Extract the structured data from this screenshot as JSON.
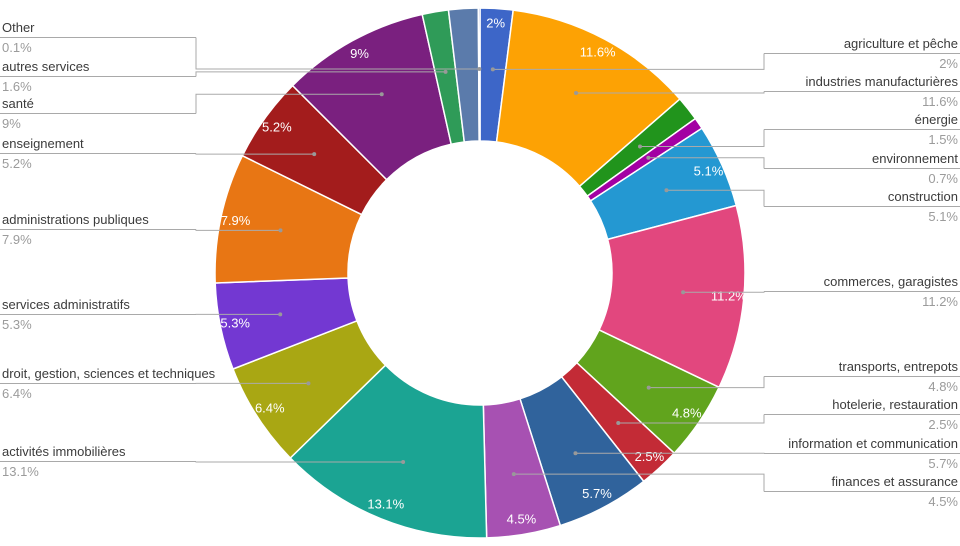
{
  "chart_data": {
    "type": "pie",
    "subtype": "donut",
    "title": "",
    "direction": "clockwise",
    "start_angle_deg": 0,
    "inner_radius_ratio": 0.5,
    "grid": false,
    "legend_position": "callout-labels-left-and-right",
    "slice_pct_label_min_value": 2,
    "colors": {
      "background": "#ffffff",
      "slice_border": "#ffffff",
      "label_name_text": "#3b3b3b",
      "label_value_text": "#9b9b9b",
      "leader_line": "#aaaaaa",
      "leader_dot": "#999999",
      "slice_pct_text": "#ffffff"
    },
    "slices": [
      {
        "name": "agriculture et pêche",
        "value": 2,
        "pct": "2%",
        "color": "#3d66c8",
        "label_side": "right"
      },
      {
        "name": "industries manufacturières",
        "value": 11.6,
        "pct": "11.6%",
        "color": "#fda204",
        "label_side": "right"
      },
      {
        "name": "énergie",
        "value": 1.5,
        "pct": "1.5%",
        "color": "#21941c",
        "label_side": "right"
      },
      {
        "name": "environnement",
        "value": 0.7,
        "pct": "0.7%",
        "color": "#a300a3",
        "label_side": "right"
      },
      {
        "name": "construction",
        "value": 5.1,
        "pct": "5.1%",
        "color": "#2498d2",
        "label_side": "right"
      },
      {
        "name": "commerces, garagistes",
        "value": 11.2,
        "pct": "11.2%",
        "color": "#e2477e",
        "label_side": "right"
      },
      {
        "name": "transports, entrepots",
        "value": 4.8,
        "pct": "4.8%",
        "color": "#61a41d",
        "label_side": "right"
      },
      {
        "name": "hotelerie, restauration",
        "value": 2.5,
        "pct": "2.5%",
        "color": "#c32b36",
        "label_side": "right"
      },
      {
        "name": "information et communication",
        "value": 5.7,
        "pct": "5.7%",
        "color": "#30639c",
        "label_side": "right"
      },
      {
        "name": "finances et assurance",
        "value": 4.5,
        "pct": "4.5%",
        "color": "#a751b2",
        "label_side": "right"
      },
      {
        "name": "activités immobilières",
        "value": 13.1,
        "pct": "13.1%",
        "color": "#1ba493",
        "label_side": "left"
      },
      {
        "name": "droit, gestion, sciences et techniques",
        "value": 6.4,
        "pct": "6.4%",
        "color": "#a9a713",
        "label_side": "left"
      },
      {
        "name": "services administratifs",
        "value": 5.3,
        "pct": "5.3%",
        "color": "#7338d2",
        "label_side": "left"
      },
      {
        "name": "administrations publiques",
        "value": 7.9,
        "pct": "7.9%",
        "color": "#e87614",
        "label_side": "left"
      },
      {
        "name": "enseignement",
        "value": 5.2,
        "pct": "5.2%",
        "color": "#a31c1c",
        "label_side": "left"
      },
      {
        "name": "santé",
        "value": 9,
        "pct": "9%",
        "color": "#7a207f",
        "label_side": "left"
      },
      {
        "name": "autres services",
        "value": 1.6,
        "pct": "1.6%",
        "color": "#2f9b58",
        "label_side": "left"
      },
      {
        "name": "",
        "value": 1.8,
        "pct": "",
        "color": "#5b7bab",
        "label_side": "none"
      },
      {
        "name": "Other",
        "value": 0.1,
        "pct": "0.1%",
        "color": "#2e3e9e",
        "label_side": "left"
      }
    ]
  }
}
